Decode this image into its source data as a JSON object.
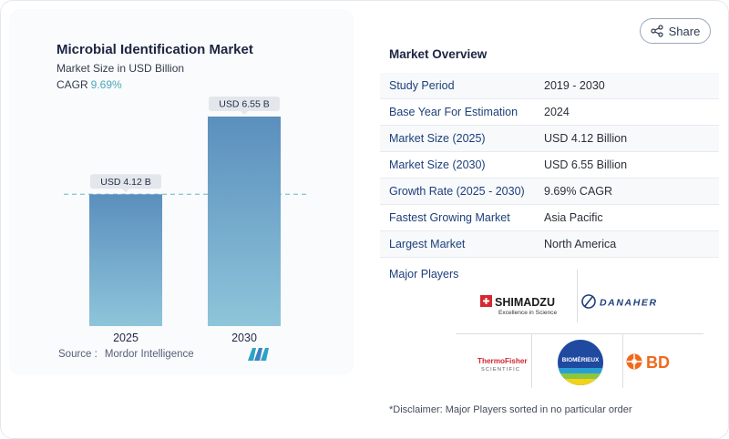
{
  "chart_data": {
    "type": "bar",
    "title": "Microbial Identification Market",
    "subtitle": "Market Size in USD Billion",
    "cagr_label": "CAGR",
    "cagr_value": "9.69%",
    "categories": [
      "2025",
      "2030"
    ],
    "values": [
      4.12,
      6.55
    ],
    "data_labels": [
      "USD 4.12 B",
      "USD 6.55 B"
    ],
    "ylim": [
      0,
      8.2
    ],
    "grid": false,
    "colors": {
      "bar_top": "#5b8fbd",
      "bar_bottom": "#8ec5da",
      "label_bg": "#e3e7ec",
      "dash": "#8fc7d4"
    }
  },
  "source": {
    "label": "Source :",
    "value": "Mordor Intelligence"
  },
  "share": {
    "label": "Share"
  },
  "overview": {
    "title": "Market Overview",
    "rows": [
      {
        "label": "Study Period",
        "value": "2019 - 2030"
      },
      {
        "label": "Base Year For Estimation",
        "value": "2024"
      },
      {
        "label": "Market Size (2025)",
        "value": "USD 4.12 Billion"
      },
      {
        "label": "Market Size (2030)",
        "value": "USD 6.55 Billion"
      },
      {
        "label": "Growth Rate (2025 - 2030)",
        "value": "9.69% CAGR"
      },
      {
        "label": "Fastest Growing Market",
        "value": "Asia Pacific"
      },
      {
        "label": "Largest Market",
        "value": "North America"
      }
    ]
  },
  "players": {
    "title": "Major Players",
    "shimadzu": {
      "name": "SHIMADZU",
      "tagline": "Excellence in Science"
    },
    "danaher": {
      "name": "DANAHER"
    },
    "thermo": {
      "line1": "ThermoFisher",
      "line2": "SCIENTIFIC"
    },
    "biomerieux": {
      "name": "BIOMÉRIEUX"
    },
    "bd": {
      "name": "BD"
    }
  },
  "disclaimer": "*Disclaimer: Major Players sorted in no particular order"
}
